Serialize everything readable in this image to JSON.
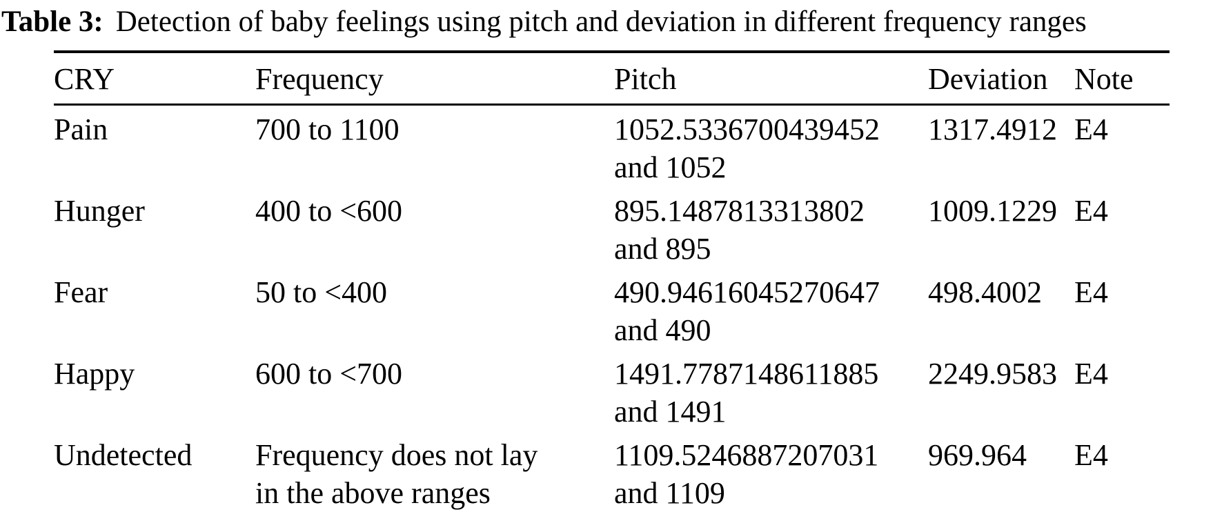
{
  "caption": {
    "label": "Table 3:",
    "text": "Detection of baby feelings using pitch and deviation in different frequency ranges"
  },
  "table": {
    "headers": {
      "cry": "CRY",
      "frequency": "Frequency",
      "pitch": "Pitch",
      "deviation": "Deviation",
      "note": "Note"
    },
    "rows": [
      {
        "cry": "Pain",
        "frequency_line1": "700 to 1100",
        "pitch_line1": "1052.5336700439452",
        "pitch_line2": "and 1052",
        "deviation": "1317.4912",
        "note": "E4"
      },
      {
        "cry": "Hunger",
        "frequency_line1": "400 to <600",
        "pitch_line1": "895.1487813313802",
        "pitch_line2": "and 895",
        "deviation": "1009.1229",
        "note": "E4"
      },
      {
        "cry": "Fear",
        "frequency_line1": "50 to <400",
        "pitch_line1": "490.94616045270647",
        "pitch_line2": "and 490",
        "deviation": "498.4002",
        "note": "E4"
      },
      {
        "cry": "Happy",
        "frequency_line1": "600 to <700",
        "pitch_line1": "1491.7787148611885",
        "pitch_line2": "and 1491",
        "deviation": "2249.9583",
        "note": "E4"
      },
      {
        "cry": "Undetected",
        "frequency_line1": "Frequency does not lay",
        "frequency_line2": "in the above ranges",
        "pitch_line1": "1109.5246887207031",
        "pitch_line2": "and 1109",
        "deviation": "969.964",
        "note": "E4"
      }
    ]
  },
  "colors": {
    "text": "#000000",
    "background": "#ffffff",
    "rule": "#000000"
  }
}
